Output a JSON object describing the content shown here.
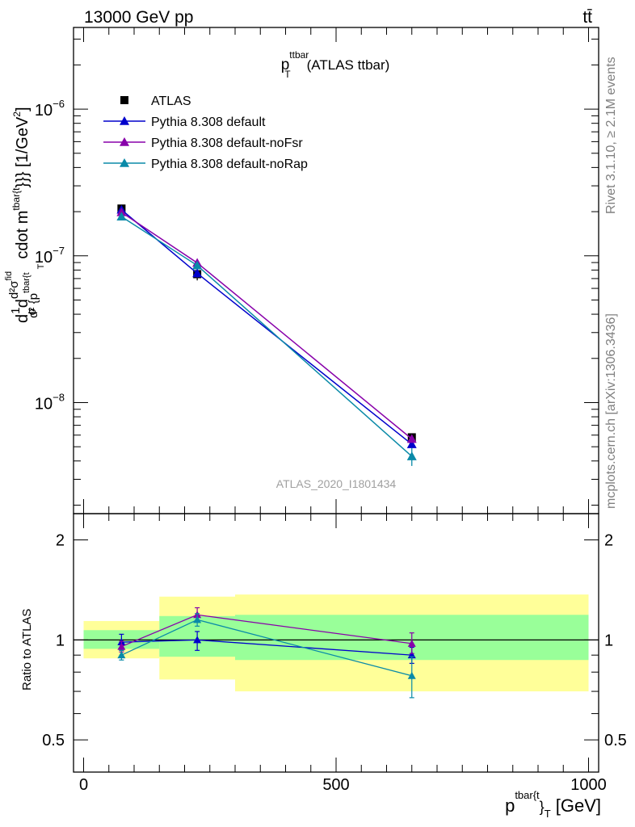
{
  "header": {
    "energy_label": "13000 GeV pp",
    "process_label": "tt̄"
  },
  "side_labels": {
    "rivet": "Rivet 3.1.10, ≥ 2.1M events",
    "mcplots": "mcplots.cern.ch [arXiv:1306.3436]"
  },
  "chart_data": [
    {
      "type": "scatter",
      "title": "(ATLAS ttbar)",
      "title_symbol": "p",
      "title_superscript": "ttbar",
      "title_subscript": "T",
      "watermark": "ATLAS_2020_I1801434",
      "ylabel": "d²σ / d²{p_T^{tbar{t}}} cdot m^{tbar{t}}}} [1/GeV²]",
      "ylabel_parts": {
        "head": "d",
        "frac1_num": "1",
        "frac1_den": "σ",
        "mid": "d",
        "frac2_num": "d²σ",
        "frac2_num_sup": "fid",
        "frac2_den": "d² {p",
        "frac2_den_sup": "tbar{t",
        "frac2_den_sub": "T",
        "tail": "cdot m",
        "tail_sup": "tbar{t",
        "tail_end": "}}} [1/GeV",
        "tail_unit_sup": "2",
        "tail_close": "]"
      },
      "yscale": "log",
      "ylim": [
        1.75e-09,
        3.6e-06
      ],
      "xlim": [
        -20,
        1020
      ],
      "ytick_labels": [
        {
          "value": 1e-06,
          "mant": "10",
          "exp": "−6"
        },
        {
          "value": 1e-07,
          "mant": "10",
          "exp": "−7"
        },
        {
          "value": 1e-08,
          "mant": "10",
          "exp": "−8"
        }
      ],
      "legend_position": "top-left",
      "x": [
        75,
        225,
        650
      ],
      "series": [
        {
          "name": "ATLAS",
          "color": "#000000",
          "marker": "square",
          "values": [
            2.1e-07,
            7.5e-08,
            5.8e-09
          ],
          "errors": [
            [
              2e-07,
              2.2e-07
            ],
            [
              6.8e-08,
              8e-08
            ],
            [
              5.5e-09,
              6.1e-09
            ]
          ]
        },
        {
          "name": "Pythia 8.308 default",
          "color": "#0000cc",
          "marker": "triangle",
          "values": [
            2.06e-07,
            7.6e-08,
            5.2e-09
          ],
          "errors": [
            [
              2e-07,
              2.12e-07
            ],
            [
              7.1e-08,
              8.1e-08
            ],
            [
              4.9e-09,
              5.5e-09
            ]
          ]
        },
        {
          "name": "Pythia 8.308 default-noFsr",
          "color": "#8800aa",
          "marker": "triangle",
          "values": [
            1.98e-07,
            8.95e-08,
            5.65e-09
          ],
          "errors": [
            [
              1.92e-07,
              2.04e-07
            ],
            [
              8.5e-08,
              9.4e-08
            ],
            [
              5.35e-09,
              5.95e-09
            ]
          ]
        },
        {
          "name": "Pythia 8.308 default-noRap",
          "color": "#0a8aa8",
          "marker": "triangle",
          "values": [
            1.85e-07,
            8.6e-08,
            4.3e-09
          ],
          "errors": [
            [
              1.8e-07,
              1.9e-07
            ],
            [
              8.2e-08,
              9e-08
            ],
            [
              3.7e-09,
              4.9e-09
            ]
          ]
        }
      ]
    },
    {
      "type": "line",
      "ylabel": "Ratio to ATLAS",
      "xlabel": "p_T^{tbar{t}} [GeV]",
      "xlabel_parts": {
        "main": "p",
        "sup": "tbar{t",
        "mid": "}",
        "sub": "T",
        "unit": " [GeV]"
      },
      "xlim": [
        -20,
        1020
      ],
      "ylim": [
        0.4,
        2.4
      ],
      "ytick_labels": [
        "0.5",
        "1",
        "2"
      ],
      "xtick_labels": [
        "0",
        "500",
        "1000"
      ],
      "bands": [
        {
          "x0": 0,
          "x1": 150,
          "inner": [
            0.94,
            1.07
          ],
          "outer": [
            0.88,
            1.14
          ]
        },
        {
          "x0": 150,
          "x1": 300,
          "inner": [
            0.89,
            1.18
          ],
          "outer": [
            0.76,
            1.35
          ]
        },
        {
          "x0": 300,
          "x1": 1000,
          "inner": [
            0.87,
            1.19
          ],
          "outer": [
            0.7,
            1.37
          ]
        }
      ],
      "x": [
        75,
        225,
        650
      ],
      "series": [
        {
          "name": "Pythia 8.308 default",
          "color": "#0000cc",
          "values": [
            0.985,
            1.0,
            0.9
          ],
          "errors": [
            [
              0.93,
              1.04
            ],
            [
              0.93,
              1.06
            ],
            [
              0.85,
              0.95
            ]
          ]
        },
        {
          "name": "Pythia 8.308 default-noFsr",
          "color": "#8800aa",
          "values": [
            0.955,
            1.19,
            0.975
          ],
          "errors": [
            [
              0.92,
              0.99
            ],
            [
              1.13,
              1.25
            ],
            [
              0.91,
              1.05
            ]
          ]
        },
        {
          "name": "Pythia 8.308 default-noRap",
          "color": "#0a8aa8",
          "values": [
            0.9,
            1.15,
            0.78
          ],
          "errors": [
            [
              0.87,
              0.93
            ],
            [
              1.1,
              1.2
            ],
            [
              0.67,
              0.89
            ]
          ]
        }
      ]
    }
  ]
}
